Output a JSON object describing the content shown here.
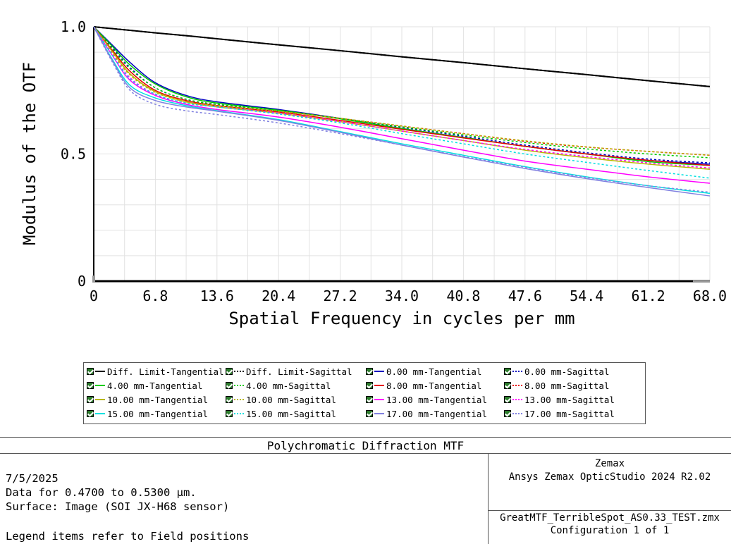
{
  "chart_data": {
    "type": "line",
    "xlabel": "Spatial Frequency in cycles per mm",
    "ylabel": "Modulus of the OTF",
    "xlim": [
      0,
      68
    ],
    "ylim": [
      0,
      1
    ],
    "x_ticks": [
      "0",
      "6.8",
      "13.6",
      "20.4",
      "27.2",
      "34.0",
      "40.8",
      "47.6",
      "54.4",
      "61.2",
      "68.0"
    ],
    "y_ticks": [
      "0",
      "0.5",
      "1.0"
    ],
    "grid": true,
    "x": [
      0,
      2,
      4,
      6.8,
      10.2,
      13.6,
      20.4,
      27.2,
      34,
      40.8,
      47.6,
      54.4,
      61.2,
      68
    ],
    "series": [
      {
        "name": "Diff. Limit-Tangential",
        "color": "#000000",
        "dash": "solid",
        "values": [
          1.0,
          0.993,
          0.986,
          0.976,
          0.965,
          0.953,
          0.929,
          0.906,
          0.882,
          0.859,
          0.835,
          0.812,
          0.788,
          0.765
        ]
      },
      {
        "name": "Diff. Limit-Sagittal",
        "color": "#000000",
        "dash": "dotted",
        "values": [
          1.0,
          0.993,
          0.986,
          0.976,
          0.965,
          0.953,
          0.929,
          0.906,
          0.882,
          0.859,
          0.835,
          0.812,
          0.788,
          0.765
        ]
      },
      {
        "name": "0.00 mm-Tangential",
        "color": "#0000c0",
        "dash": "solid",
        "values": [
          1.0,
          0.93,
          0.86,
          0.78,
          0.73,
          0.705,
          0.675,
          0.64,
          0.6,
          0.565,
          0.53,
          0.5,
          0.475,
          0.46
        ]
      },
      {
        "name": "0.00 mm-Sagittal",
        "color": "#0000c0",
        "dash": "dotted",
        "values": [
          1.0,
          0.92,
          0.84,
          0.76,
          0.715,
          0.695,
          0.67,
          0.64,
          0.605,
          0.57,
          0.535,
          0.505,
          0.48,
          0.465
        ]
      },
      {
        "name": "4.00 mm-Tangential",
        "color": "#00cc00",
        "dash": "solid",
        "values": [
          1.0,
          0.925,
          0.85,
          0.775,
          0.725,
          0.7,
          0.672,
          0.638,
          0.6,
          0.565,
          0.53,
          0.5,
          0.47,
          0.455
        ]
      },
      {
        "name": "4.00 mm-Sagittal",
        "color": "#00cc00",
        "dash": "dotted",
        "values": [
          1.0,
          0.915,
          0.835,
          0.76,
          0.715,
          0.695,
          0.67,
          0.64,
          0.607,
          0.575,
          0.545,
          0.52,
          0.5,
          0.485
        ]
      },
      {
        "name": "8.00 mm-Tangential",
        "color": "#e60000",
        "dash": "solid",
        "values": [
          1.0,
          0.91,
          0.825,
          0.75,
          0.71,
          0.69,
          0.665,
          0.632,
          0.597,
          0.563,
          0.53,
          0.5,
          0.475,
          0.455
        ]
      },
      {
        "name": "8.00 mm-Sagittal",
        "color": "#e60000",
        "dash": "dotted",
        "values": [
          1.0,
          0.905,
          0.815,
          0.745,
          0.705,
          0.69,
          0.668,
          0.64,
          0.61,
          0.58,
          0.55,
          0.527,
          0.51,
          0.495
        ]
      },
      {
        "name": "10.00 mm-Tangential",
        "color": "#b8b800",
        "dash": "solid",
        "values": [
          1.0,
          0.905,
          0.815,
          0.745,
          0.705,
          0.685,
          0.66,
          0.627,
          0.59,
          0.553,
          0.515,
          0.485,
          0.46,
          0.44
        ]
      },
      {
        "name": "10.00 mm-Sagittal",
        "color": "#b8b800",
        "dash": "dotted",
        "values": [
          1.0,
          0.9,
          0.81,
          0.742,
          0.705,
          0.69,
          0.668,
          0.64,
          0.61,
          0.58,
          0.552,
          0.528,
          0.51,
          0.495
        ]
      },
      {
        "name": "13.00 mm-Tangential",
        "color": "#ff00ff",
        "dash": "solid",
        "values": [
          1.0,
          0.89,
          0.79,
          0.73,
          0.695,
          0.675,
          0.645,
          0.605,
          0.56,
          0.515,
          0.472,
          0.44,
          0.41,
          0.385
        ]
      },
      {
        "name": "13.00 mm-Sagittal",
        "color": "#ff00ff",
        "dash": "dotted",
        "values": [
          1.0,
          0.895,
          0.8,
          0.735,
          0.7,
          0.685,
          0.66,
          0.627,
          0.59,
          0.553,
          0.518,
          0.49,
          0.465,
          0.445
        ]
      },
      {
        "name": "15.00 mm-Tangential",
        "color": "#00e0e0",
        "dash": "solid",
        "values": [
          1.0,
          0.875,
          0.77,
          0.72,
          0.69,
          0.67,
          0.635,
          0.588,
          0.54,
          0.495,
          0.45,
          0.41,
          0.375,
          0.345
        ]
      },
      {
        "name": "15.00 mm-Sagittal",
        "color": "#00e0e0",
        "dash": "dotted",
        "values": [
          1.0,
          0.89,
          0.795,
          0.735,
          0.7,
          0.685,
          0.657,
          0.622,
          0.58,
          0.54,
          0.5,
          0.467,
          0.435,
          0.405
        ]
      },
      {
        "name": "17.00 mm-Tangential",
        "color": "#8080e0",
        "dash": "solid",
        "values": [
          1.0,
          0.87,
          0.76,
          0.71,
          0.685,
          0.668,
          0.632,
          0.585,
          0.535,
          0.488,
          0.443,
          0.403,
          0.368,
          0.335
        ]
      },
      {
        "name": "17.00 mm-Sagittal",
        "color": "#8080e0",
        "dash": "dotted",
        "values": [
          1.0,
          0.865,
          0.75,
          0.695,
          0.67,
          0.655,
          0.622,
          0.58,
          0.535,
          0.49,
          0.448,
          0.408,
          0.375,
          0.35
        ]
      }
    ]
  },
  "report": {
    "title": "Polychromatic Diffraction MTF",
    "date": "7/5/2025",
    "data_range": "Data for 0.4700 to 0.5300 µm.",
    "surface": "Surface: Image (SOI JX-H68 sensor)",
    "legend_note": "Legend items refer to Field positions",
    "company": "Zemax",
    "product": "Ansys Zemax OpticStudio 2024 R2.02",
    "file": "GreatMTF_TerribleSpot_AS0.33_TEST.zmx",
    "configuration": "Configuration 1 of 1"
  }
}
